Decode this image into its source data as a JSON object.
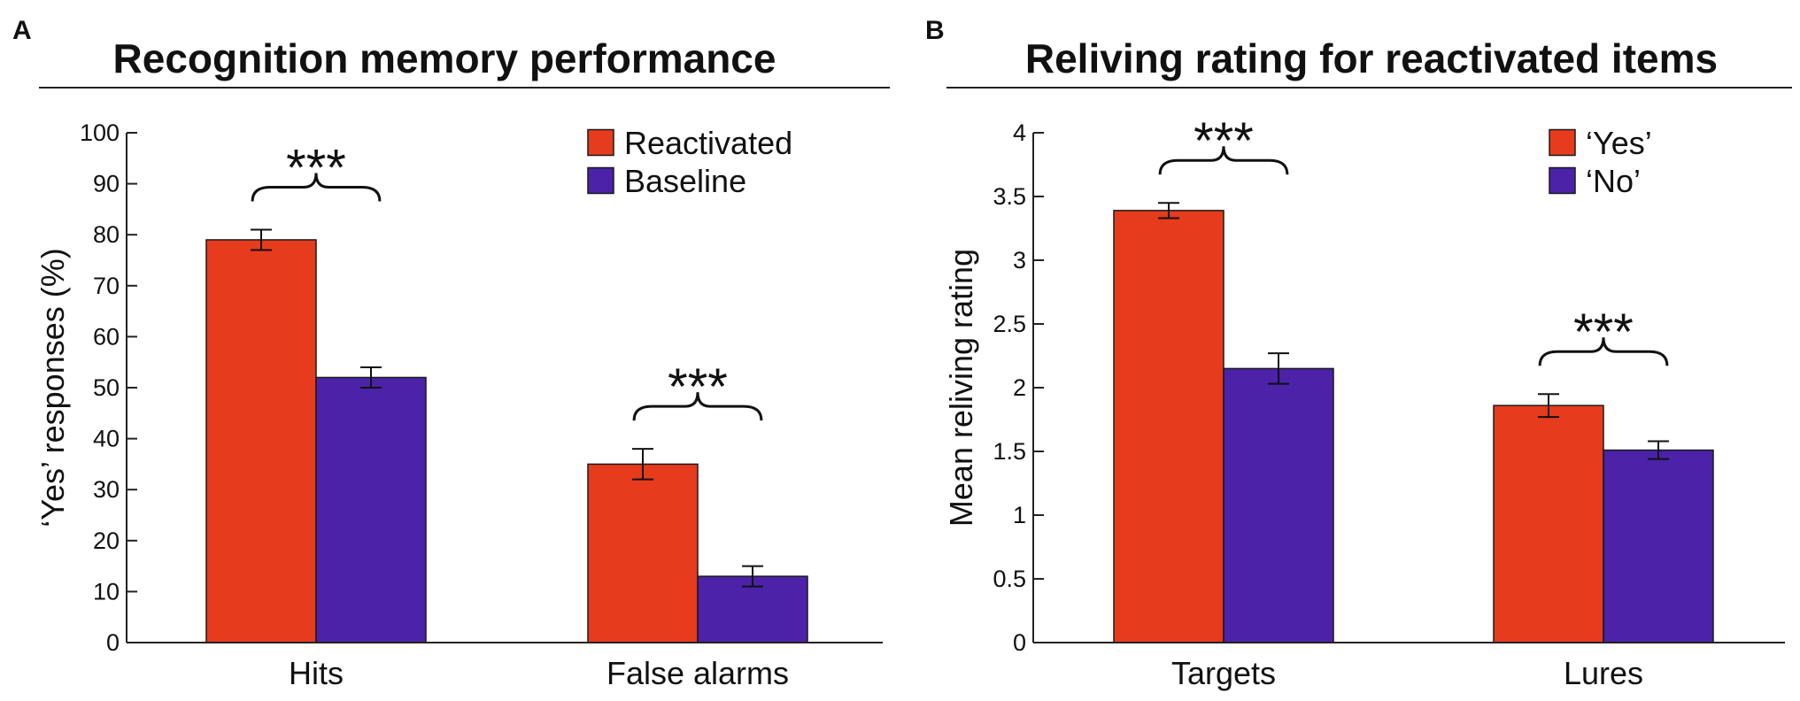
{
  "chart_data": [
    {
      "type": "bar",
      "panel_label": "A",
      "title": "Recognition memory performance",
      "xlabel": "",
      "ylabel": "‘Yes’ responses (%)",
      "ylim": [
        0,
        100
      ],
      "yticks": [
        "0",
        "10",
        "20",
        "30",
        "40",
        "50",
        "60",
        "70",
        "80",
        "90",
        "100"
      ],
      "categories": [
        "Hits",
        "False alarms"
      ],
      "series": [
        {
          "name": "Reactivated",
          "color": "#E63B1C",
          "values": [
            79,
            35
          ],
          "errors": [
            2,
            3
          ]
        },
        {
          "name": "Baseline",
          "color": "#4B22A8",
          "values": [
            52,
            13
          ],
          "errors": [
            2,
            2
          ]
        }
      ],
      "annotations": [
        {
          "category_index": 0,
          "text": "***",
          "top_value": 81
        },
        {
          "category_index": 1,
          "text": "***",
          "top_value": 38
        }
      ],
      "legend_position": "top-right",
      "grid": false
    },
    {
      "type": "bar",
      "panel_label": "B",
      "title": "Reliving rating for reactivated items",
      "xlabel": "",
      "ylabel": "Mean reliving rating",
      "ylim": [
        0,
        4
      ],
      "yticks": [
        "0",
        "0.5",
        "1",
        "1.5",
        "2",
        "2.5",
        "3",
        "3.5",
        "4"
      ],
      "categories": [
        "Targets",
        "Lures"
      ],
      "series": [
        {
          "name": "‘Yes’",
          "color": "#E63B1C",
          "values": [
            3.39,
            1.86
          ],
          "errors": [
            0.06,
            0.09
          ]
        },
        {
          "name": "‘No’",
          "color": "#4B22A8",
          "values": [
            2.15,
            1.51
          ],
          "errors": [
            0.12,
            0.07
          ]
        }
      ],
      "annotations": [
        {
          "category_index": 0,
          "text": "***",
          "top_value": 3.45
        },
        {
          "category_index": 1,
          "text": "***",
          "top_value": 1.95
        }
      ],
      "legend_position": "top-right",
      "grid": false
    }
  ]
}
